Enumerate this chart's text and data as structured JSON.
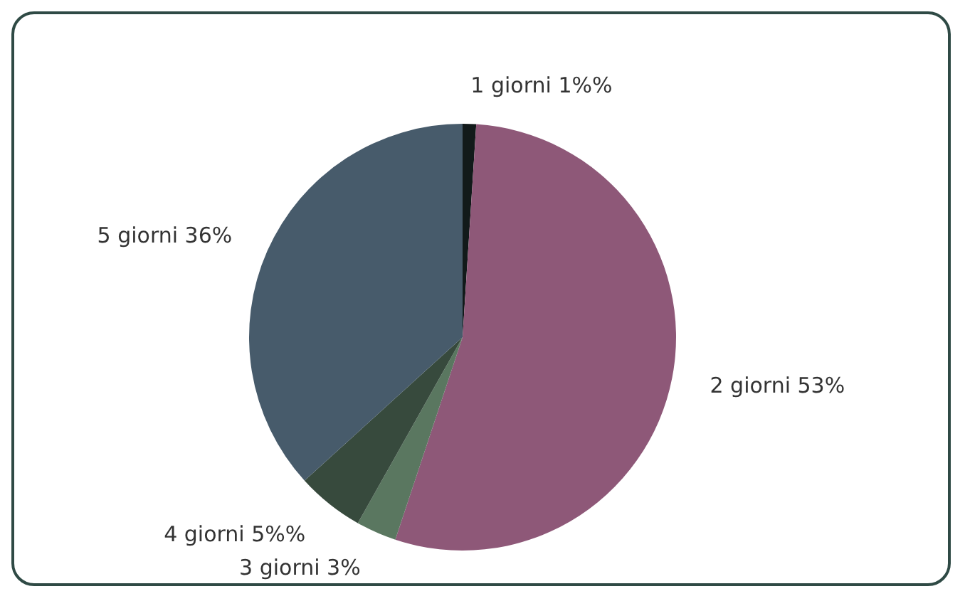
{
  "chart_data": {
    "type": "pie",
    "categories": [
      "1 giorni",
      "2 giorni",
      "3 giorni",
      "4 giorni",
      "5 giorni"
    ],
    "values": [
      1,
      53,
      3,
      5,
      36
    ],
    "value_labels": [
      "1%%",
      "53%",
      "3%",
      "5%%",
      "36%"
    ],
    "colors": [
      "#121a1a",
      "#8e5878",
      "#5a7760",
      "#374a3d",
      "#475b6b"
    ],
    "legend": false
  }
}
